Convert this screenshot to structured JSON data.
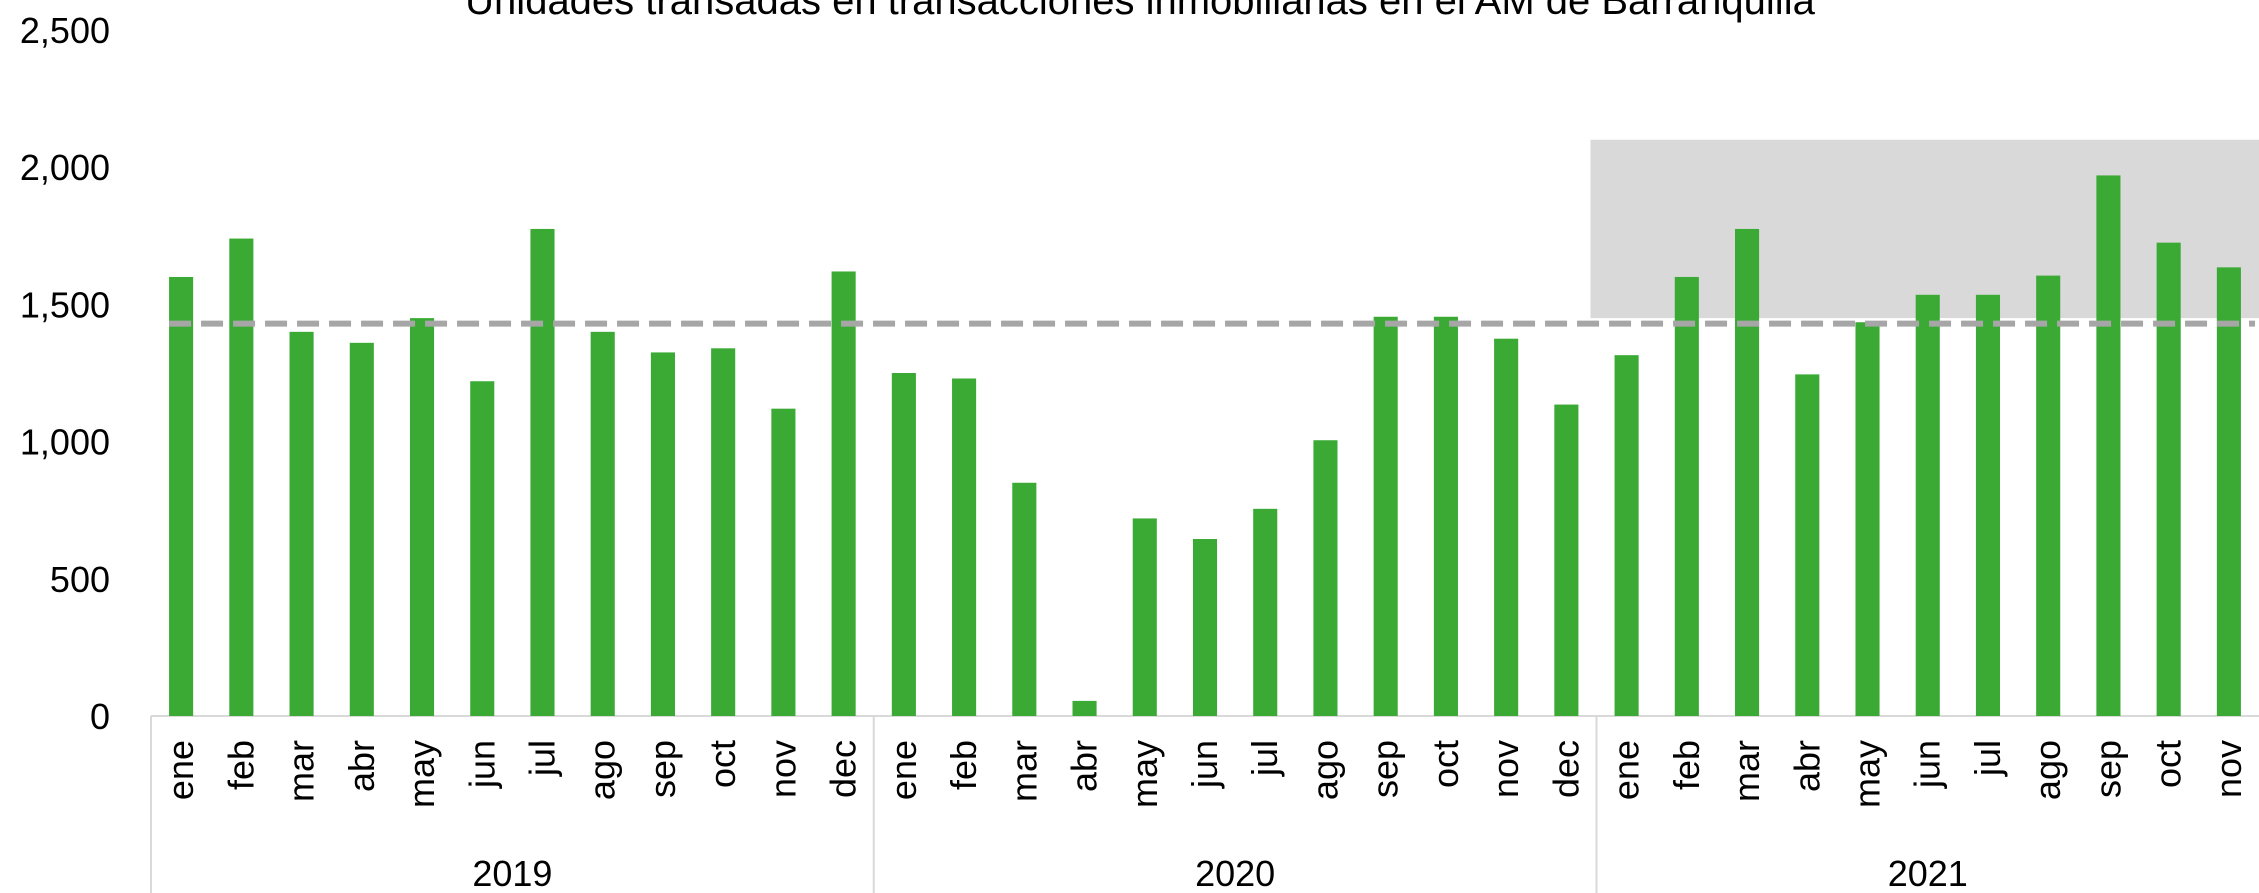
{
  "chart_data": {
    "type": "bar",
    "title": "Unidades transadas en transacciones inmobiliarias en el AM de Barranquilla",
    "color": "#3aaa35",
    "groups": [
      {
        "label": "2019",
        "categories": [
          "ene",
          "feb",
          "mar",
          "abr",
          "may",
          "jun",
          "jul",
          "ago",
          "sep",
          "oct",
          "nov",
          "dec"
        ],
        "values": [
          1600,
          1740,
          1400,
          1360,
          1450,
          1220,
          1775,
          1400,
          1325,
          1340,
          1120,
          1620
        ]
      },
      {
        "label": "2020",
        "categories": [
          "ene",
          "feb",
          "mar",
          "abr",
          "may",
          "jun",
          "jul",
          "ago",
          "sep",
          "oct",
          "nov",
          "dec"
        ],
        "values": [
          1250,
          1230,
          850,
          55,
          720,
          645,
          755,
          1005,
          1455,
          1455,
          1375,
          1135
        ]
      },
      {
        "label": "2021",
        "categories": [
          "ene",
          "feb",
          "mar",
          "abr",
          "may",
          "jun",
          "jul",
          "ago",
          "sep",
          "oct",
          "nov"
        ],
        "values": [
          1315,
          1600,
          1775,
          1245,
          1435,
          1535,
          1535,
          1605,
          1970,
          1725,
          1635
        ]
      }
    ],
    "average_line": {
      "value": 1430,
      "color": "#a6a6a6"
    },
    "highlight": {
      "ylim": [
        1450,
        2100
      ],
      "color": "#d9d9d9"
    },
    "ylim": [
      0,
      2500
    ],
    "yticks": [
      0,
      500,
      {
        "value": 1000,
        "label": "1,000"
      },
      {
        "value": 1500,
        "label": "1,500"
      },
      {
        "value": 2000,
        "label": "2,000"
      },
      {
        "value": 2500,
        "label": "2,500"
      }
    ]
  }
}
